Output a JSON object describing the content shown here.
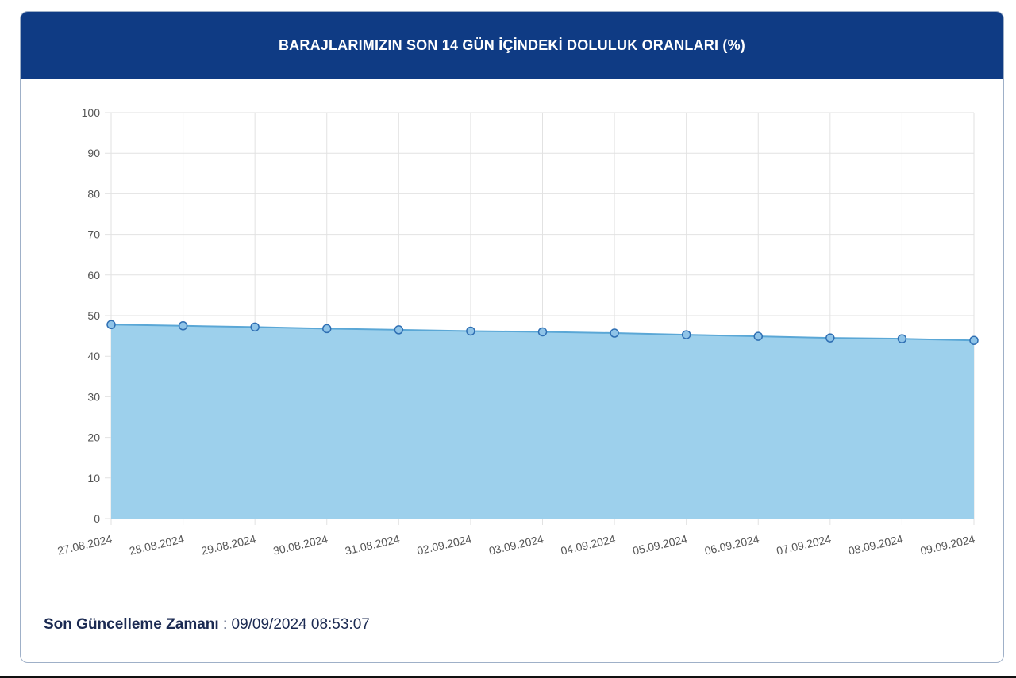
{
  "header": {
    "title": "BARAJLARIMIZIN SON 14 GÜN İÇİNDEKİ DOLULUK ORANLARI (%)"
  },
  "footer": {
    "label": "Son Güncelleme Zamanı",
    "separator": " : ",
    "value": "09/09/2024 08:53:07"
  },
  "colors": {
    "header_bg": "#0f3b84",
    "area_fill": "#9dd0ec",
    "line": "#5aa7d6",
    "point_stroke": "#2f6fb3",
    "point_fill": "#8fc4e8",
    "grid": "#e2e2e2",
    "tick_text": "#555555"
  },
  "chart_data": {
    "type": "area",
    "x": [
      "27.08.2024",
      "28.08.2024",
      "29.08.2024",
      "30.08.2024",
      "31.08.2024",
      "02.09.2024",
      "03.09.2024",
      "04.09.2024",
      "05.09.2024",
      "06.09.2024",
      "07.09.2024",
      "08.09.2024",
      "09.09.2024"
    ],
    "series": [
      {
        "values": [
          47.8,
          47.5,
          47.2,
          46.8,
          46.5,
          46.2,
          46.0,
          45.7,
          45.3,
          44.9,
          44.5,
          44.3,
          43.9
        ]
      }
    ],
    "ylim": [
      0,
      100
    ],
    "yticks": [
      0,
      10,
      20,
      30,
      40,
      50,
      60,
      70,
      80,
      90,
      100
    ],
    "grid": true,
    "legend": "none",
    "title": "BARAJLARIMIZIN SON 14 GÜN İÇİNDEKİ DOLULUK ORANLARI (%)",
    "xlabel": "",
    "ylabel": ""
  }
}
